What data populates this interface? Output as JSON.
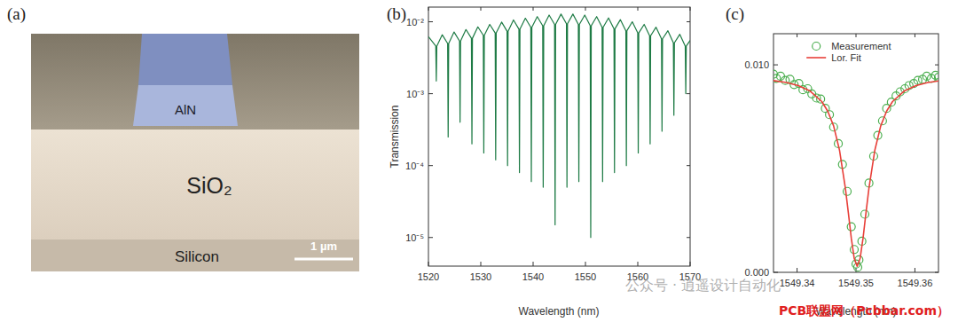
{
  "panel_labels": [
    "(a)",
    "(b)",
    "(c)"
  ],
  "sem_image": {
    "labels": {
      "aln": "AlN",
      "sio2": "SiO₂",
      "silicon": "Silicon"
    },
    "scale_bar": "1 µm"
  },
  "watermarks": [
    "公众号 · 逍遥设计自动化",
    "PCB联盟网（Pcbbar.com）"
  ],
  "chart_data": [
    {
      "type": "line",
      "x_label": "Wavelength (nm)",
      "y_label": "Transmission",
      "log": "y",
      "grid": false,
      "xlim": [
        1520,
        1570
      ],
      "xticks": [
        1520,
        1530,
        1540,
        1550,
        1560,
        1570
      ],
      "ylim": [
        4e-06,
        0.016
      ],
      "yticks": [
        {
          "value": 0.01,
          "label": "10⁻²"
        },
        {
          "value": 0.001,
          "label": "10⁻³"
        },
        {
          "value": 0.0001,
          "label": "10⁻⁴"
        },
        {
          "value": 1e-05,
          "label": "10⁻⁵"
        }
      ],
      "x": [
        1520,
        1521.4,
        1521.5,
        1521.6,
        1522.63,
        1523.67,
        1523.77,
        1523.87,
        1524.9,
        1525.94,
        1526.04,
        1526.14,
        1527.17,
        1528.21,
        1528.31,
        1528.41,
        1529.44,
        1530.48,
        1530.58,
        1530.68,
        1531.71,
        1532.75,
        1532.85,
        1532.95,
        1533.98,
        1535.02,
        1535.12,
        1535.22,
        1536.25,
        1537.29,
        1537.39,
        1537.49,
        1538.52,
        1539.56,
        1539.66,
        1539.76,
        1540.79,
        1541.83,
        1541.93,
        1542.03,
        1543.06,
        1544.1,
        1544.2,
        1544.3,
        1545.33,
        1546.37,
        1546.47,
        1546.57,
        1547.6,
        1548.64,
        1548.74,
        1548.84,
        1549.87,
        1550.91,
        1551.01,
        1551.11,
        1552.14,
        1553.18,
        1553.28,
        1553.38,
        1554.41,
        1555.45,
        1555.55,
        1555.65,
        1556.68,
        1557.72,
        1557.82,
        1557.92,
        1558.95,
        1559.99,
        1560.09,
        1560.19,
        1561.22,
        1562.26,
        1562.36,
        1562.46,
        1563.49,
        1564.53,
        1564.63,
        1564.73,
        1565.76,
        1566.8,
        1566.9,
        1567.0,
        1568.03,
        1569.07,
        1569.17,
        1569.27,
        1570
      ],
      "series": [
        {
          "color": "#1e7b45",
          "line_style": "solid",
          "values": [
            0.0062,
            0.0046,
            0.0015,
            0.0046,
            0.0066,
            0.005,
            0.00025,
            0.005,
            0.0072,
            0.0054,
            0.0004,
            0.0054,
            0.0078,
            0.0059,
            0.0002,
            0.0059,
            0.0085,
            0.0065,
            0.00015,
            0.0065,
            0.0092,
            0.007,
            0.00012,
            0.007,
            0.0099,
            0.0074,
            0.0001,
            0.0074,
            0.0106,
            0.0079,
            8e-05,
            0.0079,
            0.0112,
            0.0084,
            6e-05,
            0.0084,
            0.0118,
            0.0088,
            5e-05,
            0.0088,
            0.0124,
            0.0092,
            1.5e-05,
            0.0092,
            0.0128,
            0.0094,
            5e-05,
            0.0094,
            0.0128,
            0.0092,
            6e-05,
            0.0092,
            0.0124,
            0.0088,
            1e-05,
            0.0088,
            0.0118,
            0.0084,
            6e-05,
            0.0084,
            0.0113,
            0.008,
            8e-05,
            0.008,
            0.0107,
            0.0075,
            0.0001,
            0.0075,
            0.01,
            0.007,
            0.00015,
            0.007,
            0.0092,
            0.0064,
            0.0002,
            0.0064,
            0.0084,
            0.0058,
            0.0003,
            0.0058,
            0.0075,
            0.0051,
            0.0005,
            0.0051,
            0.0067,
            0.0046,
            0.001,
            0.0046,
            0.0055
          ]
        }
      ]
    },
    {
      "type": "scatter",
      "x_label": "Wavelength (nm)",
      "grid": false,
      "legend": "top",
      "xlim": [
        1549.336,
        1549.364
      ],
      "xticks": [
        1549.34,
        1549.35,
        1549.36
      ],
      "ylim": [
        0,
        0.0115
      ],
      "yticks": [
        {
          "value": 0,
          "label": "0.000"
        },
        {
          "value": 0.01,
          "label": "0.010"
        }
      ],
      "series": [
        {
          "name": "Measurement",
          "type": "scatter",
          "marker": "circle",
          "color": "#4caf50",
          "x": [
            1549.336,
            1549.3365,
            1549.3372,
            1549.338,
            1549.3388,
            1549.3395,
            1549.3403,
            1549.341,
            1549.3418,
            1549.3425,
            1549.3433,
            1549.344,
            1549.3448,
            1549.3455,
            1549.3462,
            1549.347,
            1549.3477,
            1549.3485,
            1549.3492,
            1549.3497,
            1549.35,
            1549.3503,
            1549.3505,
            1549.351,
            1549.3515,
            1549.3522,
            1549.353,
            1549.3537,
            1549.3545,
            1549.3552,
            1549.356,
            1549.3568,
            1549.3575,
            1549.3583,
            1549.359,
            1549.3598,
            1549.3605,
            1549.3613,
            1549.362,
            1549.3628,
            1549.3635,
            1549.364
          ],
          "values": [
            0.00955,
            0.00935,
            0.00945,
            0.00925,
            0.0093,
            0.00905,
            0.0091,
            0.0088,
            0.00885,
            0.0086,
            0.0084,
            0.00835,
            0.0079,
            0.0076,
            0.007,
            0.0062,
            0.0052,
            0.0039,
            0.0022,
            0.0011,
            0.0004,
            0.00025,
            0.0006,
            0.0015,
            0.0028,
            0.0043,
            0.0056,
            0.0066,
            0.0073,
            0.0079,
            0.0082,
            0.0085,
            0.0087,
            0.00885,
            0.009,
            0.0091,
            0.00925,
            0.0093,
            0.00945,
            0.00935,
            0.0095,
            0.0094
          ]
        },
        {
          "name": "Lor. Fit",
          "type": "line",
          "line_style": "solid",
          "color": "#e8403a",
          "x": [
            1549.3352,
            1549.3382,
            1549.3402,
            1549.3422,
            1549.3442,
            1549.3452,
            1549.3462,
            1549.3472,
            1549.3482,
            1549.3487,
            1549.3492,
            1549.3497,
            1549.3502,
            1549.3507,
            1549.3512,
            1549.3517,
            1549.3522,
            1549.3532,
            1549.3542,
            1549.3552,
            1549.3562,
            1549.3582,
            1549.3602,
            1549.3622,
            1549.3652
          ],
          "values": [
            0.00927,
            0.00915,
            0.009,
            0.00874,
            0.00823,
            0.00777,
            0.00706,
            0.00589,
            0.00406,
            0.00288,
            0.00165,
            0.00067,
            0.00029,
            0.00067,
            0.00165,
            0.00288,
            0.00406,
            0.00589,
            0.00706,
            0.00777,
            0.00823,
            0.00874,
            0.009,
            0.00915,
            0.00927
          ]
        }
      ]
    }
  ]
}
